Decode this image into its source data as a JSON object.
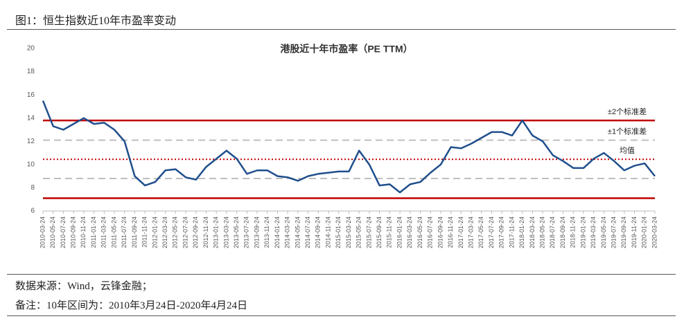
{
  "header": {
    "title": "图1：恒生指数近10年市盈率变动"
  },
  "chart_data": {
    "type": "line",
    "title": "港股近十年市盈率（PE TTM）",
    "categories": [
      "2010-03-24",
      "2010-05-24",
      "2010-07-24",
      "2010-09-24",
      "2010-11-24",
      "2011-01-24",
      "2011-03-24",
      "2011-05-24",
      "2011-07-24",
      "2011-09-24",
      "2011-11-24",
      "2012-01-24",
      "2012-03-24",
      "2012-05-24",
      "2012-07-24",
      "2012-09-24",
      "2012-11-24",
      "2013-01-24",
      "2013-03-24",
      "2013-05-24",
      "2013-07-24",
      "2013-09-24",
      "2013-11-24",
      "2014-01-24",
      "2014-03-24",
      "2014-05-24",
      "2014-07-24",
      "2014-09-24",
      "2014-11-24",
      "2015-01-24",
      "2015-03-24",
      "2015-05-24",
      "2015-07-24",
      "2015-09-24",
      "2015-11-24",
      "2016-01-24",
      "2016-03-24",
      "2016-05-24",
      "2016-07-24",
      "2016-09-24",
      "2016-11-24",
      "2017-01-24",
      "2017-03-24",
      "2017-05-24",
      "2017-07-24",
      "2017-09-24",
      "2017-11-24",
      "2018-01-24",
      "2018-03-24",
      "2018-05-24",
      "2018-07-24",
      "2018-09-24",
      "2018-11-24",
      "2019-01-24",
      "2019-03-24",
      "2019-05-24",
      "2019-07-24",
      "2019-09-24",
      "2019-11-24",
      "2020-01-24",
      "2020-03-24"
    ],
    "series": [
      {
        "name": "PE TTM",
        "color": "#1f4e8c",
        "values": [
          15.5,
          13.3,
          13.0,
          13.5,
          14.0,
          13.5,
          13.6,
          13.0,
          12.0,
          9.0,
          8.2,
          8.5,
          9.5,
          9.6,
          8.9,
          8.7,
          9.8,
          10.5,
          11.2,
          10.5,
          9.2,
          9.5,
          9.5,
          9.0,
          8.9,
          8.6,
          9.0,
          9.2,
          9.3,
          9.4,
          9.4,
          11.2,
          10.0,
          8.2,
          8.3,
          7.6,
          8.3,
          8.5,
          9.3,
          10.0,
          11.5,
          11.4,
          11.8,
          12.3,
          12.8,
          12.8,
          12.5,
          13.8,
          12.5,
          12.0,
          10.8,
          10.3,
          9.7,
          9.7,
          10.5,
          11.0,
          10.3,
          9.5,
          9.9,
          10.1,
          9.0
        ]
      }
    ],
    "reference_lines": [
      {
        "label": "±2个标准差",
        "values": [
          13.8,
          7.1
        ],
        "color": "#c00000",
        "style": "solid"
      },
      {
        "label": "±1个标准差",
        "values": [
          12.1,
          8.8
        ],
        "color": "#bfbfbf",
        "style": "dashed"
      },
      {
        "label": "均值",
        "values": [
          10.45
        ],
        "color": "#c00000",
        "style": "dotted"
      }
    ],
    "ylim": [
      6,
      20
    ],
    "yticks": [
      6,
      8,
      10,
      12,
      14,
      16,
      18,
      20
    ]
  },
  "footer": {
    "source": "数据来源：Wind，云锋金融；",
    "note": "备注：10年区间为：2010年3月24日-2020年4月24日"
  }
}
